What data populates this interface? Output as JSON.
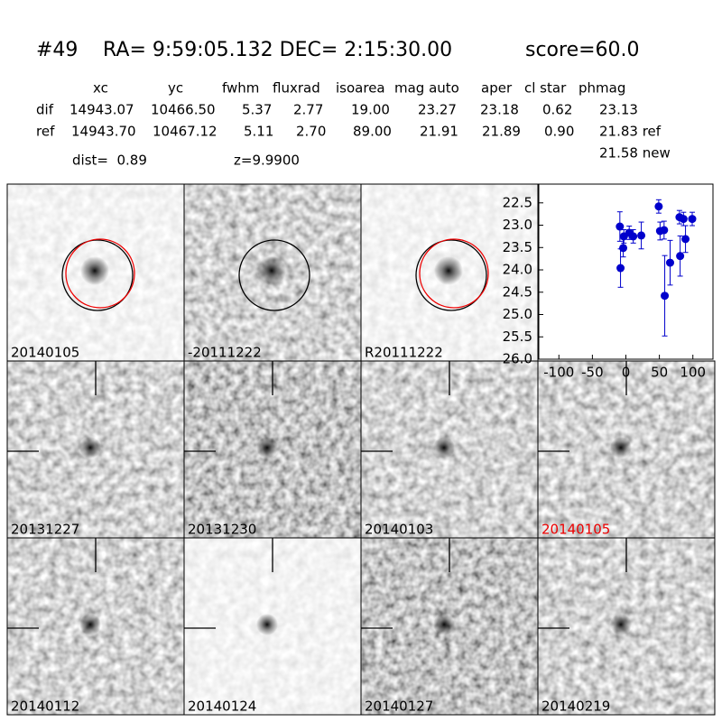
{
  "header": {
    "id": "#49",
    "coords": "RA= 9:59:05.132 DEC= 2:15:30.00",
    "score": "score=60.0"
  },
  "table": {
    "columns": [
      "xc",
      "yc",
      "fwhm",
      "fluxrad",
      "isoarea",
      "mag auto",
      "aper",
      "cl star",
      "phmag"
    ],
    "rows": [
      [
        "dif",
        "14943.07",
        "10466.50",
        "5.37",
        "2.77",
        "19.00",
        "23.27",
        "23.18",
        "0.62",
        "23.13"
      ],
      [
        "ref",
        "14943.70",
        "10467.12",
        "5.11",
        "2.70",
        "89.00",
        "21.91",
        "21.89",
        "0.90",
        "21.83 ref"
      ]
    ],
    "dist": "dist=  0.89",
    "z": "z=9.9900",
    "new": "21.58 new"
  },
  "panels": [
    {
      "label": "20140105"
    },
    {
      "label": "-20111222"
    },
    {
      "label": "R20111222"
    },
    {
      "label": "20131227"
    },
    {
      "label": "20131230"
    },
    {
      "label": "20140103"
    },
    {
      "label": "20140105"
    },
    {
      "label": "20140112"
    },
    {
      "label": "20140124"
    },
    {
      "label": "20140127"
    },
    {
      "label": "20140219"
    }
  ],
  "chart_data": {
    "type": "scatter",
    "color": "#0000cc",
    "x": [
      -9,
      -8,
      -4,
      -3,
      5,
      11,
      23,
      49,
      51,
      57,
      58,
      66,
      80,
      81,
      86,
      89,
      99
    ],
    "values": [
      23.03,
      23.96,
      23.51,
      23.25,
      23.17,
      23.25,
      23.23,
      22.58,
      23.13,
      23.11,
      24.58,
      23.84,
      22.82,
      23.69,
      22.86,
      23.31,
      22.86
    ],
    "errors": [
      0.33,
      0.43,
      0.2,
      0.15,
      0.15,
      0.15,
      0.3,
      0.15,
      0.2,
      0.2,
      0.9,
      0.5,
      0.15,
      0.45,
      0.15,
      0.3,
      0.15
    ],
    "xlim": [
      -130,
      130
    ],
    "ylim": [
      26,
      22.08
    ],
    "xticks": [
      -100,
      -50,
      0,
      50,
      100
    ],
    "yticks": [
      22.5,
      {
        "value": 23,
        "label": "23.0"
      },
      23.5,
      {
        "value": 24,
        "label": "24.0"
      },
      24.5,
      {
        "value": 25,
        "label": "25.0"
      },
      25.5,
      {
        "value": 26,
        "label": "26.0"
      }
    ]
  }
}
